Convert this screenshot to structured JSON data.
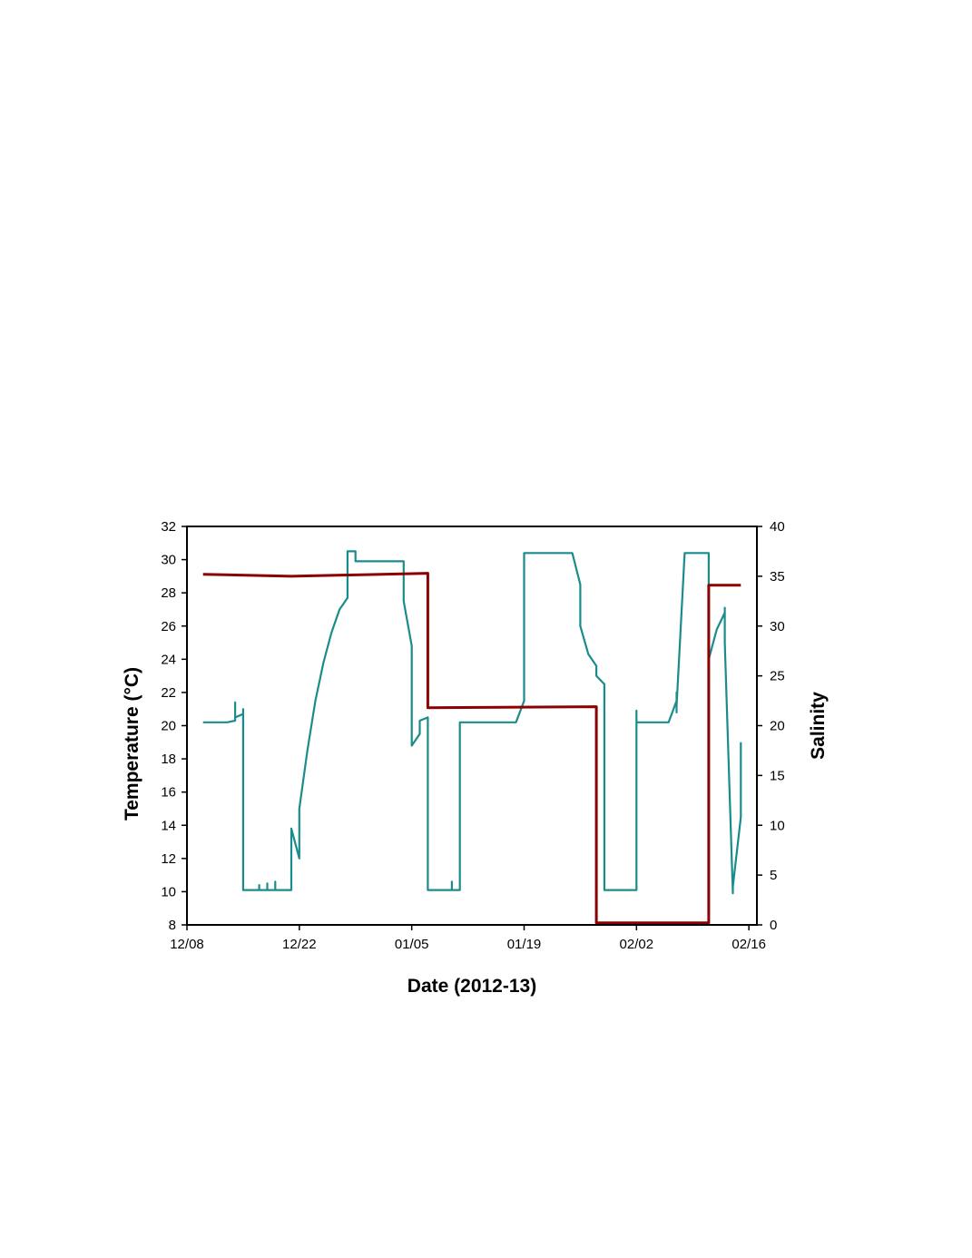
{
  "chart_data": {
    "type": "line",
    "title": "",
    "xlabel": "Date (2012-13)",
    "ylabel": "Temperature (°C)",
    "y2label": "Salinity",
    "x_ticks": [
      {
        "date": "2012-12-08",
        "label": "12/08"
      },
      {
        "date": "2012-12-22",
        "label": "12/22"
      },
      {
        "date": "2013-01-05",
        "label": "01/05"
      },
      {
        "date": "2013-01-19",
        "label": "01/19"
      },
      {
        "date": "2013-02-02",
        "label": "02/02"
      },
      {
        "date": "2013-02-16",
        "label": "02/16"
      }
    ],
    "xlim": [
      "2012-12-08",
      "2013-02-17"
    ],
    "ylim": [
      8,
      32
    ],
    "y_ticks": [
      8,
      10,
      12,
      14,
      16,
      18,
      20,
      22,
      24,
      26,
      28,
      30,
      32
    ],
    "y2lim": [
      0,
      40
    ],
    "y2_ticks": [
      0,
      5,
      10,
      15,
      20,
      25,
      30,
      35,
      40
    ],
    "grid": false,
    "colors": {
      "temperature": "#1a8c8c",
      "salinity": "#8b0000"
    },
    "series": [
      {
        "axis": "left",
        "color": "#1a8c8c",
        "points": [
          [
            "2012-12-10",
            20.2
          ],
          [
            "2012-12-13",
            20.2
          ],
          [
            "2012-12-14",
            20.3
          ],
          [
            "2012-12-14",
            21.4
          ],
          [
            "2012-12-14",
            20.5
          ],
          [
            "2012-12-15",
            20.7
          ],
          [
            "2012-12-15",
            21.0
          ],
          [
            "2012-12-15",
            10.1
          ],
          [
            "2012-12-17",
            10.1
          ],
          [
            "2012-12-17",
            10.4
          ],
          [
            "2012-12-17",
            10.1
          ],
          [
            "2012-12-18",
            10.1
          ],
          [
            "2012-12-18",
            10.5
          ],
          [
            "2012-12-18",
            10.1
          ],
          [
            "2012-12-19",
            10.1
          ],
          [
            "2012-12-19",
            10.6
          ],
          [
            "2012-12-19",
            10.1
          ],
          [
            "2012-12-21",
            10.1
          ],
          [
            "2012-12-21",
            13.8
          ],
          [
            "2012-12-22",
            12.0
          ],
          [
            "2012-12-22",
            15.0
          ],
          [
            "2012-12-23",
            18.5
          ],
          [
            "2012-12-24",
            21.5
          ],
          [
            "2012-12-25",
            23.8
          ],
          [
            "2012-12-26",
            25.6
          ],
          [
            "2012-12-27",
            27.0
          ],
          [
            "2012-12-28",
            27.7
          ],
          [
            "2012-12-28",
            30.5
          ],
          [
            "2012-12-29",
            30.5
          ],
          [
            "2012-12-29",
            29.9
          ],
          [
            "2013-01-04",
            29.9
          ],
          [
            "2013-01-04",
            27.5
          ],
          [
            "2013-01-05",
            24.8
          ],
          [
            "2013-01-05",
            23.8
          ],
          [
            "2013-01-05",
            18.8
          ],
          [
            "2013-01-06",
            19.5
          ],
          [
            "2013-01-06",
            20.3
          ],
          [
            "2013-01-07",
            20.5
          ],
          [
            "2013-01-07",
            10.1
          ],
          [
            "2013-01-10",
            10.1
          ],
          [
            "2013-01-10",
            10.6
          ],
          [
            "2013-01-10",
            10.1
          ],
          [
            "2013-01-11",
            10.1
          ],
          [
            "2013-01-11",
            20.2
          ],
          [
            "2013-01-18",
            20.2
          ],
          [
            "2013-01-19",
            21.5
          ],
          [
            "2013-01-19",
            22.3
          ],
          [
            "2013-01-19",
            30.4
          ],
          [
            "2013-01-25",
            30.4
          ],
          [
            "2013-01-26",
            28.5
          ],
          [
            "2013-01-26",
            26.0
          ],
          [
            "2013-01-27",
            24.3
          ],
          [
            "2013-01-28",
            23.6
          ],
          [
            "2013-01-28",
            23.0
          ],
          [
            "2013-01-29",
            22.5
          ],
          [
            "2013-01-29",
            22.3
          ],
          [
            "2013-01-29",
            10.1
          ],
          [
            "2013-02-02",
            10.1
          ],
          [
            "2013-02-02",
            20.9
          ],
          [
            "2013-02-02",
            20.2
          ],
          [
            "2013-02-06",
            20.2
          ],
          [
            "2013-02-07",
            21.5
          ],
          [
            "2013-02-07",
            22.0
          ],
          [
            "2013-02-07",
            20.8
          ],
          [
            "2013-02-07",
            21.2
          ],
          [
            "2013-02-08",
            30.4
          ],
          [
            "2013-02-11",
            30.4
          ],
          [
            "2013-02-11",
            24.0
          ],
          [
            "2013-02-12",
            25.8
          ],
          [
            "2013-02-13",
            26.8
          ],
          [
            "2013-02-13",
            27.1
          ],
          [
            "2013-02-13",
            25.0
          ],
          [
            "2013-02-14",
            9.9
          ],
          [
            "2013-02-14",
            10.3
          ],
          [
            "2013-02-15",
            14.5
          ],
          [
            "2013-02-15",
            19.0
          ]
        ]
      },
      {
        "axis": "right",
        "color": "#8b0000",
        "points": [
          [
            "2012-12-10",
            35.2
          ],
          [
            "2012-12-21",
            35.0
          ],
          [
            "2013-01-07",
            35.3
          ],
          [
            "2013-01-07",
            21.8
          ],
          [
            "2013-01-28",
            21.9
          ],
          [
            "2013-01-28",
            0.2
          ],
          [
            "2013-02-11",
            0.2
          ],
          [
            "2013-02-11",
            34.1
          ],
          [
            "2013-02-15",
            34.1
          ]
        ]
      }
    ]
  }
}
